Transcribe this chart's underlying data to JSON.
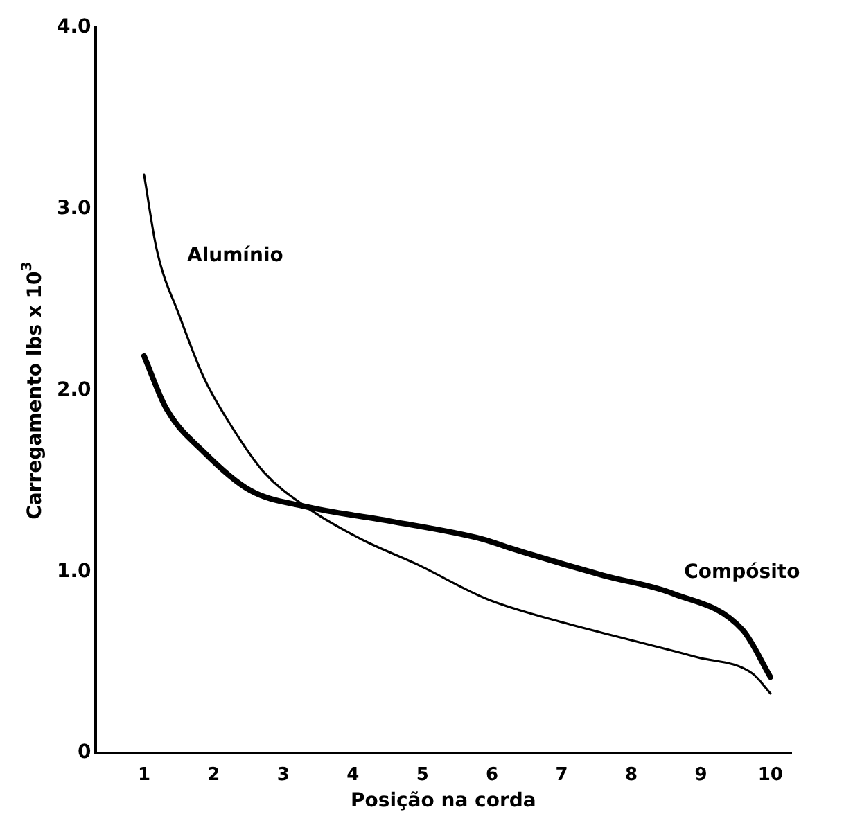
{
  "chart_data": {
    "type": "line",
    "xlabel": "Posição na corda",
    "ylabel": "Carregamento lbs x 10$^{3}$",
    "xlim": [
      0.3,
      10.3
    ],
    "xticks": [
      1,
      2,
      3,
      4,
      5,
      6,
      7,
      8,
      9,
      10
    ],
    "ylim": [
      0,
      4
    ],
    "yticks": [
      {
        "value": 0,
        "label": "0"
      },
      {
        "value": 1,
        "label": "1.0"
      },
      {
        "value": 2,
        "label": "2.0"
      },
      {
        "value": 3,
        "label": "3.0"
      },
      {
        "value": 4,
        "label": "4.0"
      }
    ],
    "grid": false,
    "legend": false,
    "marker": "none",
    "line_style": "solid",
    "series": [
      {
        "name": "Alumínio",
        "color": "#000000",
        "x": [
          1,
          1.18,
          1.52,
          1.86,
          2.26,
          2.72,
          3.32,
          4.12,
          4.93,
          5.93,
          6.93,
          7.93,
          8.94,
          9.74,
          10
        ],
        "values": [
          3.19,
          2.78,
          2.4,
          2.07,
          1.8,
          1.55,
          1.36,
          1.18,
          1.04,
          0.85,
          0.73,
          0.63,
          0.53,
          0.44,
          0.33
        ]
      },
      {
        "name": "Compósito",
        "color": "#000000",
        "x": [
          1,
          1.32,
          1.86,
          2.52,
          3.32,
          4.53,
          5.87,
          6.27,
          7.6,
          8.6,
          9.6,
          10
        ],
        "values": [
          2.19,
          1.9,
          1.66,
          1.45,
          1.36,
          1.28,
          1.18,
          1.13,
          0.98,
          0.88,
          0.68,
          0.42
        ]
      }
    ]
  }
}
